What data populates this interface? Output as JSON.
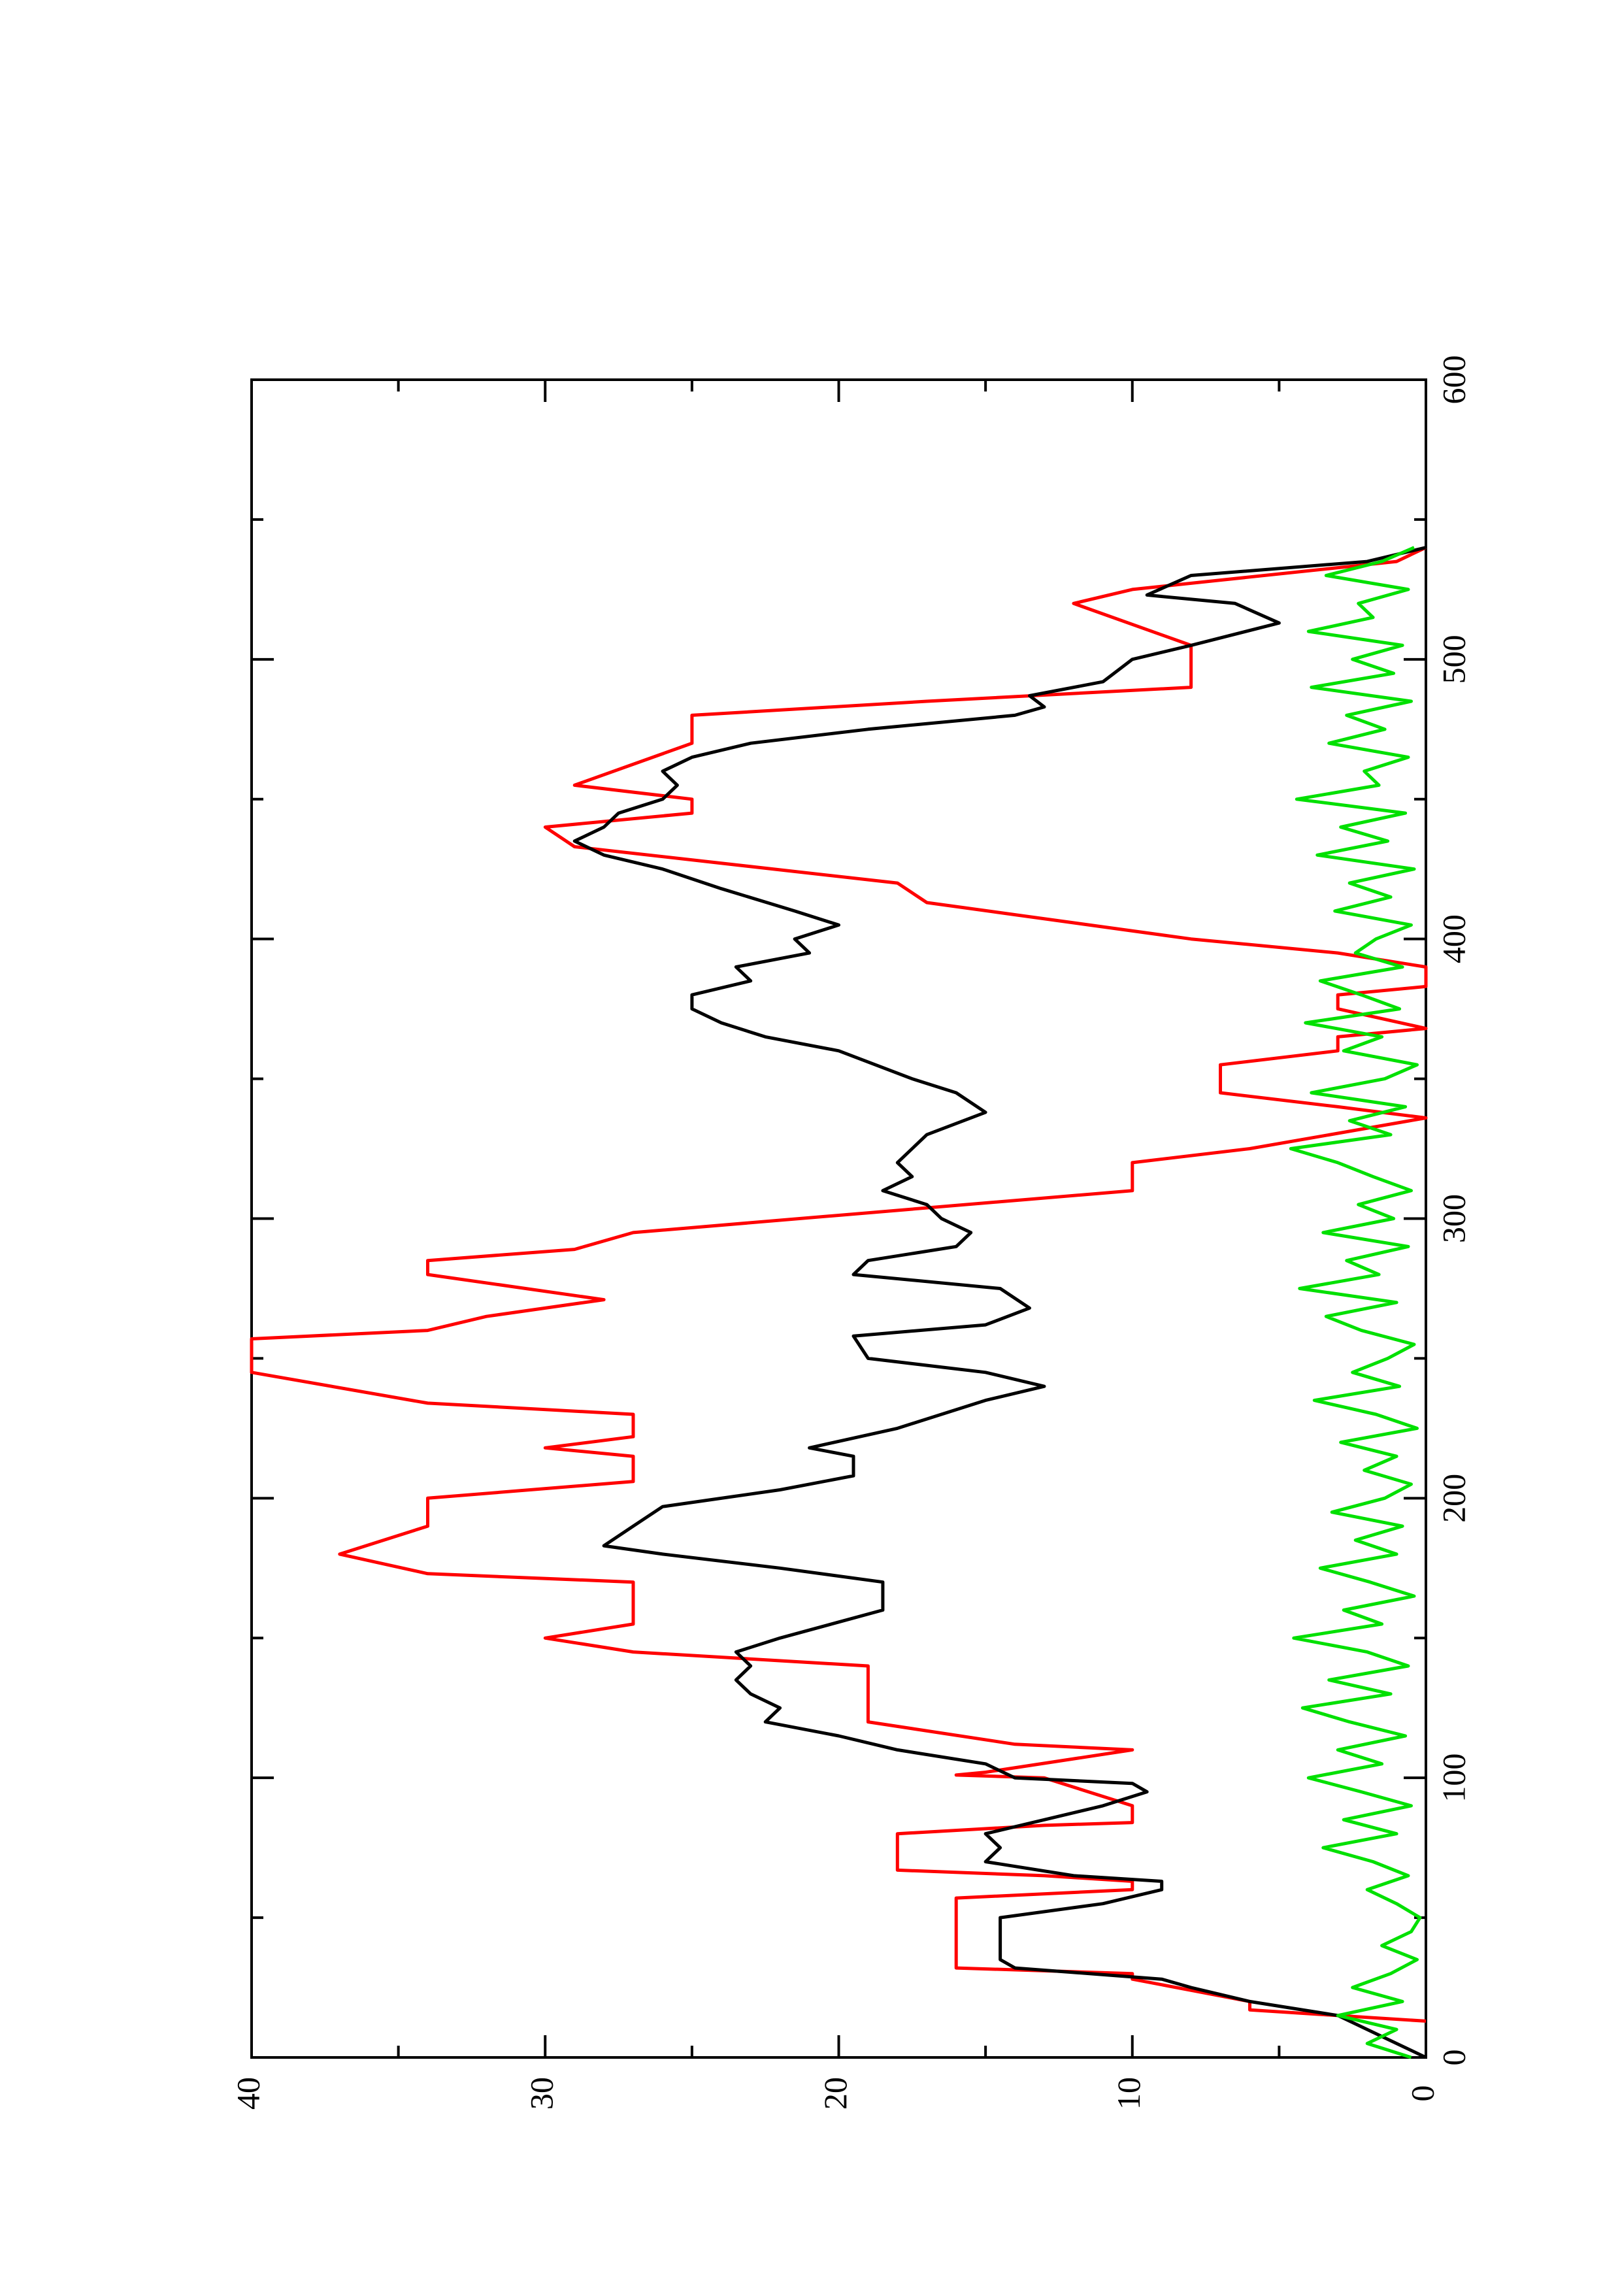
{
  "chart_data": {
    "type": "line",
    "xlim": [
      0,
      600
    ],
    "xticks": [
      0,
      100,
      200,
      300,
      400,
      500,
      600
    ],
    "xminor_ticks": [
      50,
      150,
      250,
      350,
      450,
      550
    ],
    "ylim": [
      0,
      40
    ],
    "yticks": [
      0,
      10,
      20,
      30,
      40
    ],
    "yminor_ticks": [
      5,
      15,
      25,
      35
    ],
    "series": [
      {
        "color": "#ff0000",
        "x": [
          13,
          17,
          20,
          28,
          30,
          32,
          57,
          60,
          63,
          65,
          67,
          80,
          83,
          84,
          90,
          100,
          101,
          102,
          110,
          112,
          120,
          140,
          145,
          150,
          155,
          170,
          173,
          180,
          190,
          200,
          206,
          215,
          218,
          222,
          230,
          234,
          245,
          257,
          260,
          265,
          271,
          280,
          285,
          289,
          295,
          310,
          320,
          325,
          336,
          340,
          345,
          355,
          360,
          365,
          368,
          375,
          380,
          383,
          390,
          395,
          400,
          413,
          420,
          433,
          440,
          445,
          450,
          455,
          470,
          480,
          485,
          490,
          505,
          520,
          525,
          535,
          540
        ],
        "values": [
          0,
          6,
          6,
          10,
          10,
          16,
          16,
          10,
          10,
          13,
          18,
          18,
          13,
          10,
          10,
          13,
          16,
          15,
          10,
          14,
          19,
          19,
          27,
          30,
          27,
          27,
          34,
          37,
          34,
          34,
          27,
          27,
          30,
          27,
          27,
          34,
          40,
          40,
          34,
          32,
          28,
          34,
          34,
          29,
          27,
          10,
          10,
          6,
          0,
          3,
          7,
          7,
          3,
          3,
          0,
          3,
          3,
          0,
          0,
          3,
          8,
          17,
          18,
          29,
          30,
          25,
          25,
          29,
          25,
          25,
          17,
          8,
          8,
          12,
          10,
          1,
          0
        ]
      },
      {
        "color": "#000000",
        "x": [
          0,
          5,
          10,
          15,
          20,
          25,
          28,
          32,
          35,
          50,
          55,
          60,
          63,
          65,
          70,
          75,
          80,
          85,
          90,
          95,
          98,
          100,
          105,
          110,
          115,
          120,
          125,
          130,
          135,
          140,
          145,
          150,
          160,
          170,
          175,
          180,
          183,
          190,
          197,
          203,
          208,
          215,
          218,
          225,
          235,
          240,
          245,
          250,
          258,
          262,
          268,
          275,
          280,
          285,
          290,
          295,
          300,
          305,
          310,
          315,
          320,
          325,
          330,
          338,
          345,
          350,
          360,
          365,
          370,
          375,
          380,
          385,
          390,
          395,
          400,
          405,
          410,
          418,
          425,
          430,
          435,
          440,
          445,
          450,
          455,
          460,
          465,
          470,
          475,
          480,
          483,
          487,
          492,
          500,
          505,
          513,
          520,
          523,
          530,
          535,
          540
        ],
        "values": [
          0,
          1,
          2,
          3,
          6,
          8,
          9,
          14,
          14.5,
          14.5,
          11,
          9,
          9,
          12,
          15,
          14.5,
          15,
          13,
          11,
          9.5,
          10,
          14,
          15,
          18,
          20,
          22.5,
          22,
          23,
          23.5,
          23,
          23.5,
          22,
          18.5,
          18.5,
          22,
          26,
          28,
          27,
          26,
          22,
          19.5,
          19.5,
          21,
          18,
          15,
          13,
          15,
          19,
          19.5,
          15,
          13.5,
          14.5,
          19.5,
          19,
          16,
          15.5,
          16.5,
          17,
          18.5,
          17.5,
          18,
          17.5,
          17,
          15,
          16,
          17.5,
          20,
          22.5,
          24,
          25,
          25,
          23,
          23.5,
          21,
          21.5,
          20,
          21.5,
          24,
          26,
          28,
          29,
          28,
          27.5,
          26,
          25.5,
          26,
          25,
          23,
          19,
          14,
          13,
          13.5,
          11,
          10,
          8,
          5,
          6.5,
          9.5,
          8,
          2,
          0
        ]
      },
      {
        "color": "#00e000",
        "x": [
          0,
          5,
          10,
          15,
          20,
          25,
          30,
          35,
          40,
          45,
          50,
          55,
          60,
          65,
          70,
          75,
          80,
          85,
          90,
          95,
          100,
          105,
          110,
          115,
          120,
          125,
          130,
          135,
          140,
          145,
          150,
          155,
          160,
          165,
          170,
          175,
          180,
          185,
          190,
          195,
          200,
          205,
          210,
          215,
          220,
          225,
          230,
          235,
          240,
          245,
          250,
          255,
          260,
          265,
          270,
          275,
          280,
          285,
          290,
          295,
          300,
          305,
          310,
          315,
          320,
          325,
          330,
          335,
          340,
          345,
          350,
          355,
          360,
          365,
          370,
          375,
          380,
          385,
          390,
          395,
          400,
          405,
          410,
          415,
          420,
          425,
          430,
          435,
          440,
          445,
          450,
          455,
          460,
          465,
          470,
          475,
          480,
          485,
          490,
          495,
          500,
          505,
          510,
          515,
          520,
          525,
          530,
          535,
          540
        ],
        "values": [
          0.5,
          2,
          1,
          3,
          0.8,
          2.5,
          1.2,
          0.3,
          1.5,
          0.5,
          0.2,
          1,
          2,
          0.6,
          1.8,
          3.5,
          1,
          2.8,
          0.5,
          2.2,
          4,
          1.5,
          3,
          0.7,
          2.6,
          4.2,
          1.2,
          3.3,
          0.6,
          2,
          4.5,
          1.5,
          2.8,
          0.4,
          1.9,
          3.6,
          1,
          2.4,
          0.8,
          3.2,
          1.4,
          0.5,
          2.1,
          1,
          2.9,
          0.3,
          1.7,
          3.8,
          0.9,
          2.5,
          1.3,
          0.4,
          2.2,
          3.4,
          1,
          4.3,
          1.6,
          2.7,
          0.6,
          3.5,
          1.1,
          2.3,
          0.5,
          1.8,
          3,
          4.6,
          1.2,
          2.6,
          0.7,
          3.9,
          1.4,
          0.3,
          2.8,
          1.5,
          4.1,
          0.9,
          2.2,
          3.6,
          0.8,
          2.4,
          1.7,
          0.5,
          3.1,
          1.2,
          2.6,
          0.4,
          3.7,
          1.3,
          2.9,
          0.7,
          4.4,
          1.6,
          2.1,
          0.6,
          3.3,
          1.4,
          2.7,
          0.5,
          3.9,
          1.1,
          2.5,
          0.8,
          4,
          1.8,
          2.3,
          0.6,
          3.4,
          1.5,
          0.4
        ]
      }
    ]
  }
}
